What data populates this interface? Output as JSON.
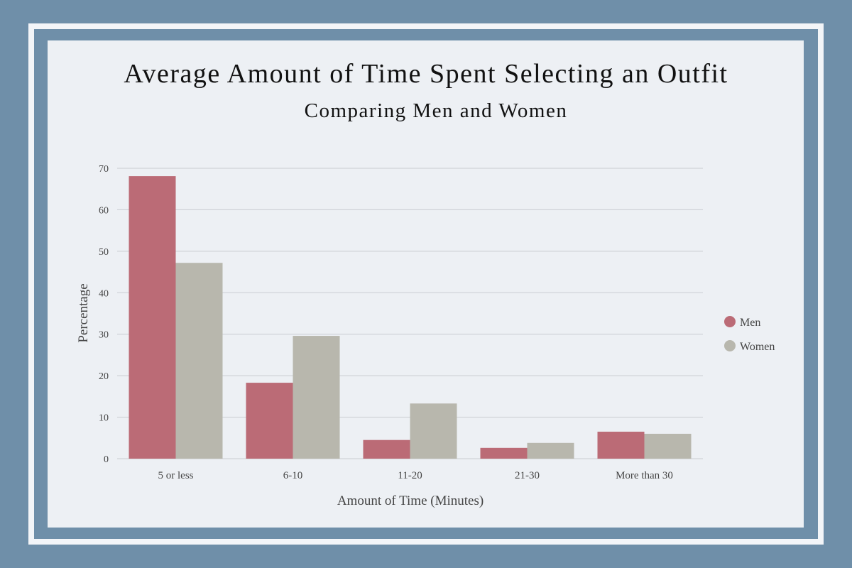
{
  "chart_data": {
    "type": "bar",
    "title": "Average Amount of Time Spent Selecting an Outfit",
    "subtitle": "Comparing Men and Women",
    "x_label": "Amount of Time (Minutes)",
    "y_label": "Percentage",
    "categories": [
      "5 or less",
      "6-10",
      "11-20",
      "21-30",
      "More than 30"
    ],
    "series": [
      {
        "name": "Men",
        "color": "#bb6b76",
        "values": [
          68.1,
          18.3,
          4.5,
          2.6,
          6.5
        ]
      },
      {
        "name": "Women",
        "color": "#b8b7ad",
        "values": [
          47.2,
          29.6,
          13.3,
          3.8,
          6.0
        ]
      }
    ],
    "ylim": [
      0,
      70
    ],
    "yticks": [
      0,
      10,
      20,
      30,
      40,
      50,
      60,
      70
    ],
    "grid": true,
    "legend": "right"
  }
}
